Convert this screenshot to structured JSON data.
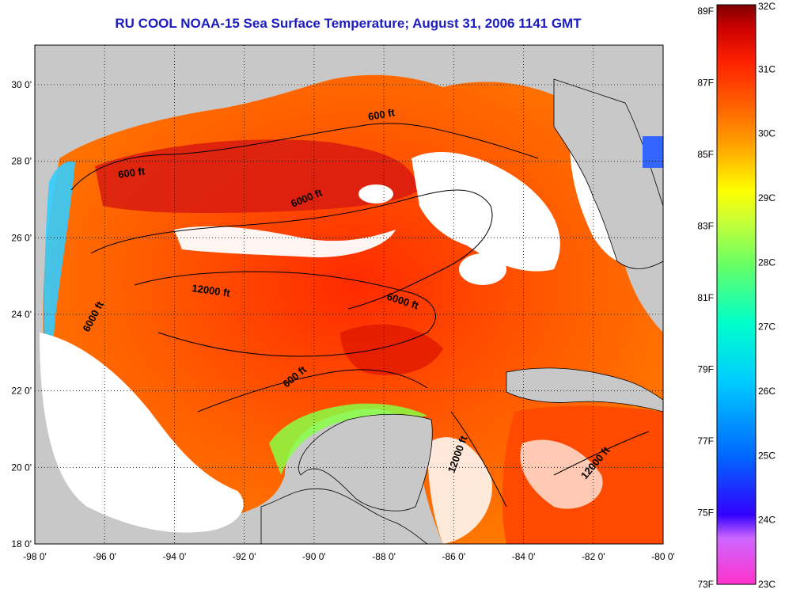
{
  "title": "RU COOL  NOAA-15  Sea Surface Temperature;  August 31, 2006 1141 GMT",
  "lon_ticks": [
    "-98 0'",
    "-96 0'",
    "-94 0'",
    "-92 0'",
    "-90 0'",
    "-88 0'",
    "-86 0'",
    "-84 0'",
    "-82 0'",
    "-80 0'"
  ],
  "lat_ticks": [
    "30 0'",
    "28 0'",
    "26 0'",
    "24 0'",
    "22 0'",
    "20 0'",
    "18 0'"
  ],
  "contour_labels": [
    "600 ft",
    "600 ft",
    "6000 ft",
    "12000 ft",
    "6000 ft",
    "6000 ft",
    "600 ft",
    "12000 ft",
    "12000 ft"
  ],
  "colorbar": {
    "fahrenheit": [
      "89F",
      "87F",
      "85F",
      "83F",
      "81F",
      "79F",
      "77F",
      "75F",
      "73F"
    ],
    "celsius": [
      "32C",
      "31C",
      "30C",
      "29C",
      "28C",
      "27C",
      "26C",
      "25C",
      "24C",
      "23C"
    ],
    "stops": [
      "#ff33cc",
      "#cc66ff",
      "#3300ff",
      "#0066ff",
      "#00ccff",
      "#00ffcc",
      "#66ff66",
      "#ccff33",
      "#ffff00",
      "#ffaa00",
      "#ff6600",
      "#ff2200",
      "#cc0000",
      "#800000"
    ]
  },
  "colors": {
    "land": "#c8c8c8",
    "cloud": "#ffffff",
    "title": "#1c1cbf"
  }
}
